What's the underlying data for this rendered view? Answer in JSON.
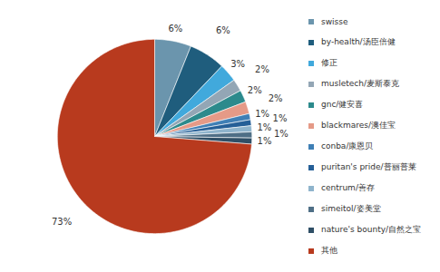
{
  "chart_data": {
    "type": "pie",
    "categories": [
      "swisse",
      "by-health/汤臣倍健",
      "修正",
      "musletech/麦斯泰克",
      "gnc/健安喜",
      "blackmares/澳佳宝",
      "conba/康恩贝",
      "puritan's pride/普丽普莱",
      "centrum/善存",
      "simeitol/姿美堂",
      "nature's bounty/自然之宝",
      "其他"
    ],
    "values": [
      6,
      6,
      3,
      2,
      2,
      2,
      1,
      1,
      1,
      1,
      1,
      73
    ],
    "value_labels": [
      "6%",
      "6%",
      "3%",
      "2%",
      "2%",
      "2%",
      "1%",
      "1%",
      "1%",
      "1%",
      "1%",
      "73%"
    ],
    "colors": [
      "#6b95ad",
      "#1f5d7d",
      "#41a9dc",
      "#93a6b5",
      "#2c8a8c",
      "#e59a87",
      "#3f7fb5",
      "#255f97",
      "#8fb4cc",
      "#4f6f86",
      "#2f4f66",
      "#b83a1e"
    ],
    "data_labels": true,
    "legend": "right"
  }
}
